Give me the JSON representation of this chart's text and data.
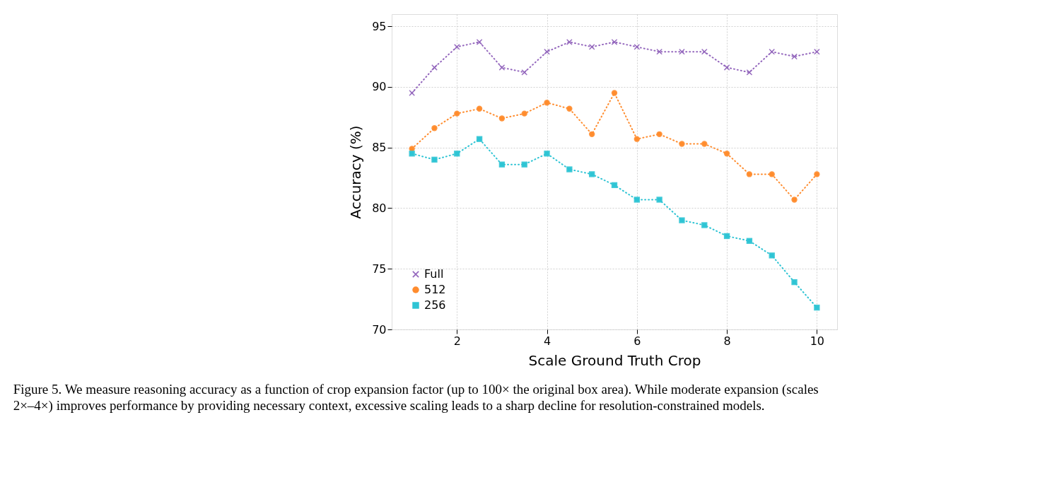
{
  "chart_data": {
    "type": "line",
    "xlabel": "Scale Ground Truth Crop",
    "ylabel": "Accuracy (%)",
    "x": [
      1,
      1.5,
      2,
      2.5,
      3,
      3.5,
      4,
      4.5,
      5,
      5.5,
      6,
      6.5,
      7,
      7.5,
      8,
      8.5,
      9,
      9.5,
      10
    ],
    "series": [
      {
        "name": "Full",
        "color": "#9467bd",
        "marker": "cross",
        "values": [
          89.5,
          91.6,
          93.3,
          93.7,
          91.6,
          91.2,
          92.9,
          93.7,
          93.3,
          93.7,
          93.3,
          92.9,
          92.9,
          92.9,
          91.6,
          91.2,
          92.9,
          92.5,
          92.9
        ]
      },
      {
        "name": "512",
        "color": "#ff8c2e",
        "marker": "circle",
        "values": [
          84.9,
          86.6,
          87.8,
          88.2,
          87.4,
          87.8,
          88.7,
          88.2,
          86.1,
          89.5,
          85.7,
          86.1,
          85.3,
          85.3,
          84.5,
          82.8,
          82.8,
          80.7,
          82.8
        ]
      },
      {
        "name": "256",
        "color": "#2fc4d4",
        "marker": "square",
        "values": [
          84.5,
          84.0,
          84.5,
          85.7,
          83.6,
          83.6,
          84.5,
          83.2,
          82.8,
          81.9,
          80.7,
          80.7,
          79.0,
          78.6,
          77.7,
          77.3,
          76.1,
          73.9,
          71.8
        ]
      }
    ],
    "xlim": [
      0.55,
      10.45
    ],
    "xticks": [
      2,
      4,
      6,
      8,
      10
    ],
    "ylim": [
      70,
      96
    ],
    "yticks": [
      70,
      75,
      80,
      85,
      90,
      95
    ],
    "grid": true,
    "legend": "bottom left",
    "line_style": "dotted",
    "annotations": [
      "Figure 5. We measure reasoning accuracy as a function of crop expansion factor (up to 100× the original box area). While moderate expansion (scales 2×–4×) improves performance by providing necessary context, excessive scaling leads to a sharp decline for resolution-constrained models."
    ]
  }
}
